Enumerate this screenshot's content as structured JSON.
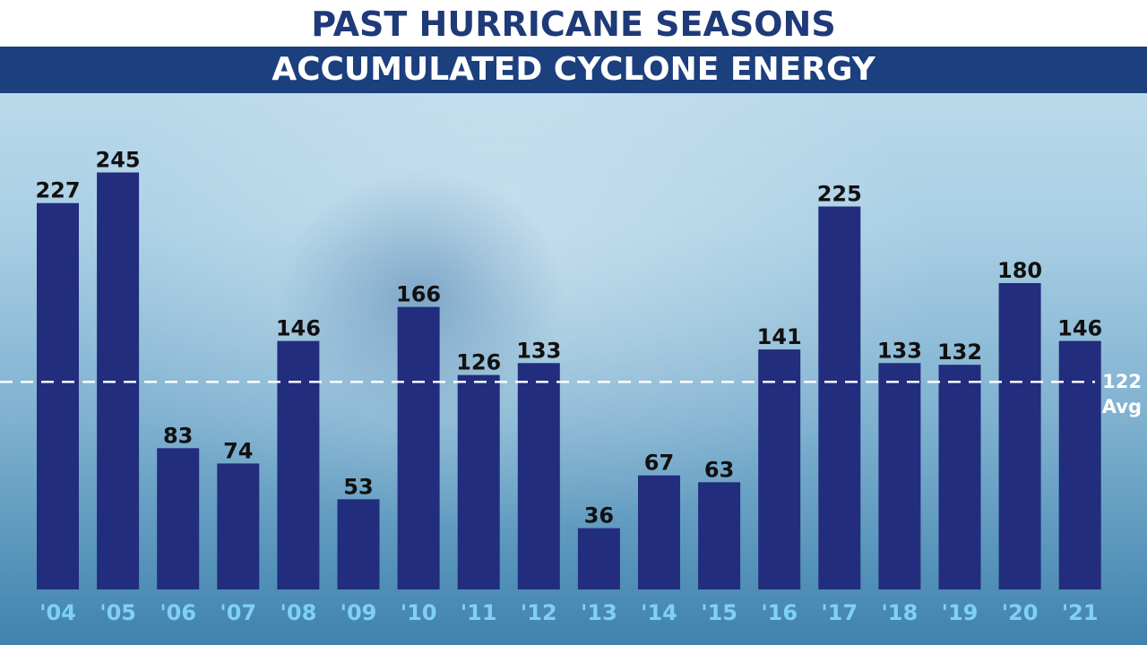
{
  "header": {
    "title": "PAST HURRICANE SEASONS",
    "subtitle": "ACCUMULATED CYCLONE ENERGY"
  },
  "colors": {
    "bar": "#222d7e",
    "tick_label": "#7fd0f8",
    "value_label": "#111111",
    "average_line": "#ffffff",
    "title_text": "#1f3a78",
    "subtitle_bar": "#1c3f7e"
  },
  "chart_data": {
    "type": "bar",
    "title": "ACCUMULATED CYCLONE ENERGY",
    "categories": [
      "'04",
      "'05",
      "'06",
      "'07",
      "'08",
      "'09",
      "'10",
      "'11",
      "'12",
      "'13",
      "'14",
      "'15",
      "'16",
      "'17",
      "'18",
      "'19",
      "'20",
      "'21"
    ],
    "values": [
      227,
      245,
      83,
      74,
      146,
      53,
      166,
      126,
      133,
      36,
      67,
      63,
      141,
      225,
      133,
      132,
      180,
      146
    ],
    "ylim": [
      0,
      260
    ],
    "grid": false,
    "reference_line": {
      "value": 122,
      "label_value": "122",
      "label_text": "Avg",
      "style": "dashed"
    }
  }
}
